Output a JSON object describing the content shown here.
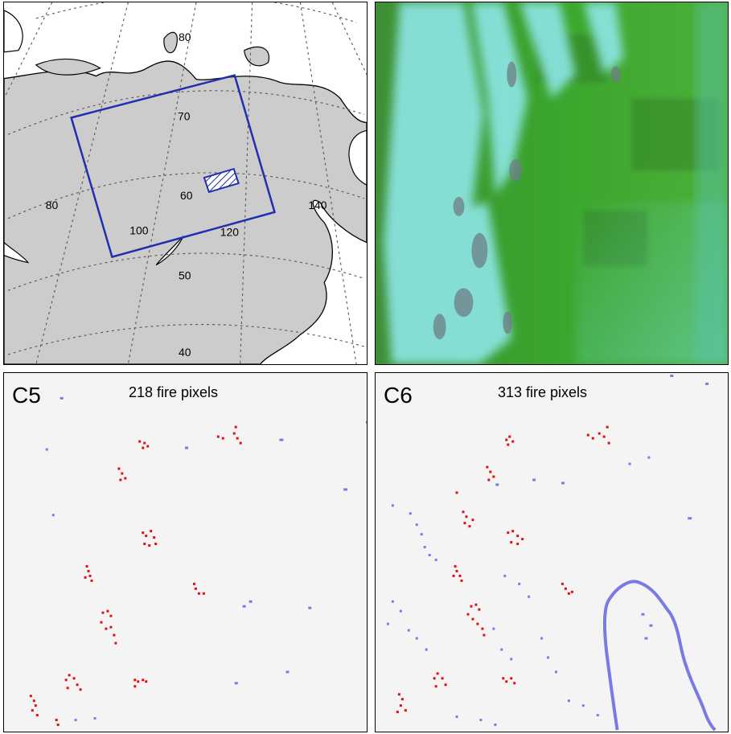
{
  "map": {
    "lat_labels": [
      "80",
      "70",
      "60",
      "50",
      "40"
    ],
    "lon_labels": [
      "80",
      "100",
      "120",
      "140"
    ],
    "colors": {
      "land": "#cccccc",
      "sea": "#ffffff",
      "grid": "#555555",
      "box": "#1f2fb0"
    }
  },
  "panels": {
    "c5": {
      "label": "C5",
      "title": "218 fire pixels",
      "fire_count": 218
    },
    "c6": {
      "label": "C6",
      "title": "313 fire pixels",
      "fire_count": 313
    }
  },
  "colors": {
    "fire": "#e01010",
    "cloud": "#7a7ae6",
    "background": "#f4f4f4"
  }
}
